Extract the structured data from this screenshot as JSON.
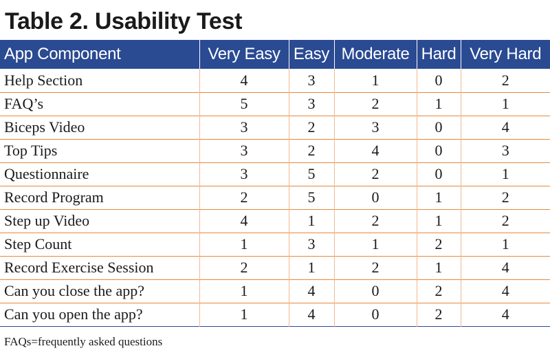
{
  "title": "Table 2. Usability Test",
  "columns": [
    "App Component",
    "Very Easy",
    "Easy",
    "Moderate",
    "Hard",
    "Very Hard"
  ],
  "rows": [
    [
      "Help Section",
      "4",
      "3",
      "1",
      "0",
      "2"
    ],
    [
      "FAQ’s",
      "5",
      "3",
      "2",
      "1",
      "1"
    ],
    [
      "Biceps Video",
      "3",
      "2",
      "3",
      "0",
      "4"
    ],
    [
      "Top Tips",
      "3",
      "2",
      "4",
      "0",
      "3"
    ],
    [
      "Questionnaire",
      "3",
      "5",
      "2",
      "0",
      "1"
    ],
    [
      "Record Program",
      "2",
      "5",
      "0",
      "1",
      "2"
    ],
    [
      "Step up Video",
      "4",
      "1",
      "2",
      "1",
      "2"
    ],
    [
      "Step Count",
      "1",
      "3",
      "1",
      "2",
      "1"
    ],
    [
      "Record Exercise Session",
      "2",
      "1",
      "2",
      "1",
      "4"
    ],
    [
      "Can you close the app?",
      "1",
      "4",
      "0",
      "2",
      "4"
    ],
    [
      "Can you open the app?",
      "1",
      "4",
      "0",
      "2",
      "4"
    ]
  ],
  "footnote": "FAQs=frequently asked questions",
  "colors": {
    "header_background": "#2a4a92",
    "row_separator": "#e8883a",
    "header_text": "#ffffff"
  }
}
